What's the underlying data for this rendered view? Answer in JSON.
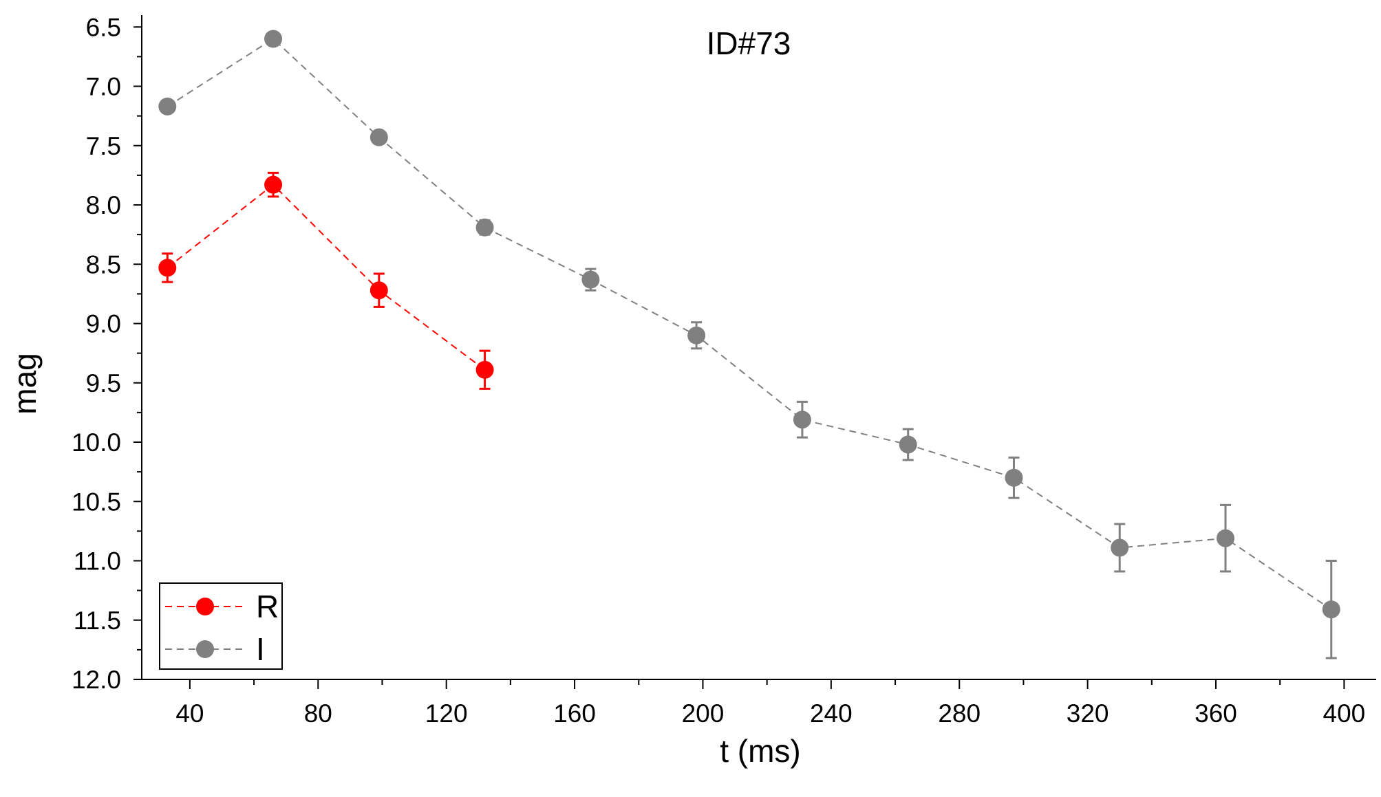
{
  "chart_data": {
    "type": "scatter",
    "title": "ID#73",
    "xlabel": "t (ms)",
    "ylabel": "mag",
    "xlim": [
      25,
      410
    ],
    "ylim": [
      6.4,
      12.0
    ],
    "y_inverted": true,
    "xticks": [
      40,
      80,
      120,
      160,
      200,
      240,
      280,
      320,
      360,
      400
    ],
    "yticks": [
      "6.5",
      "7.0",
      "7.5",
      "8.0",
      "8.5",
      "9.0",
      "9.5",
      "10.0",
      "10.5",
      "11.0",
      "11.5",
      "12.0"
    ],
    "grid": false,
    "legend_position": "bottom-left",
    "series": [
      {
        "name": "R",
        "color": "#ff0000",
        "line_style": "dashed",
        "marker": "circle",
        "x": [
          33,
          66,
          99,
          132
        ],
        "y": [
          8.53,
          7.83,
          8.72,
          9.39
        ],
        "err": [
          0.12,
          0.1,
          0.14,
          0.16
        ]
      },
      {
        "name": "I",
        "color": "#808080",
        "line_style": "dashed",
        "marker": "circle",
        "x": [
          33,
          66,
          99,
          132,
          165,
          198,
          231,
          264,
          297,
          330,
          363,
          396
        ],
        "y": [
          7.17,
          6.6,
          7.43,
          8.19,
          8.63,
          9.1,
          9.81,
          10.02,
          10.3,
          10.89,
          10.81,
          11.41
        ],
        "err": [
          0.04,
          0.04,
          0.05,
          0.06,
          0.09,
          0.11,
          0.15,
          0.13,
          0.17,
          0.2,
          0.28,
          0.41
        ]
      }
    ]
  }
}
